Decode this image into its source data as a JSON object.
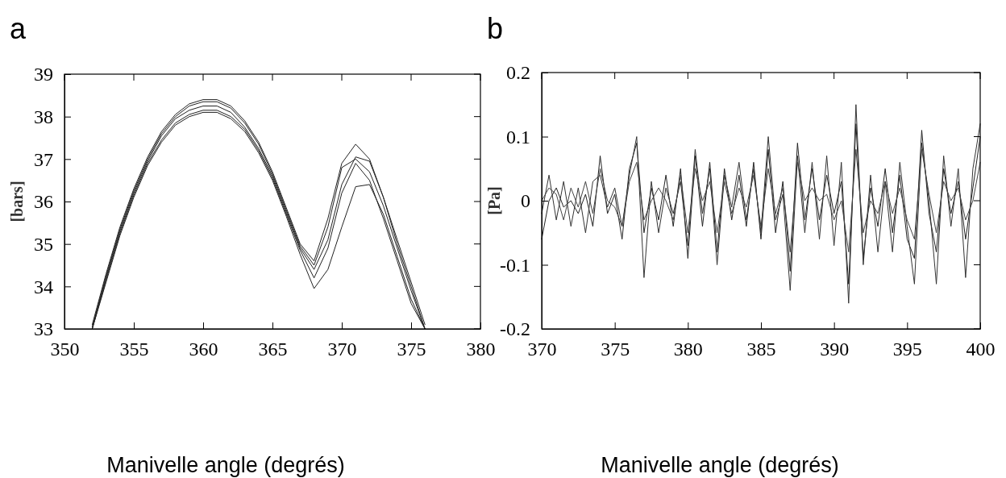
{
  "chart_data": [
    {
      "type": "line",
      "title": "a",
      "xlabel": "Manivelle angle (degrés)",
      "ylabel": "[bars]",
      "xlim": [
        350,
        380
      ],
      "xticks": [
        350,
        355,
        360,
        365,
        370,
        375,
        380
      ],
      "ylim": [
        33,
        39
      ],
      "yticks": [
        33,
        34,
        35,
        36,
        37,
        38,
        39
      ],
      "grid": false,
      "marker": "none",
      "line_style": "solid",
      "x": [
        352,
        353,
        354,
        355,
        356,
        357,
        358,
        359,
        360,
        361,
        362,
        363,
        364,
        365,
        366,
        367,
        368,
        369,
        370,
        371,
        372,
        373,
        374,
        375,
        376
      ],
      "series": [
        {
          "color": "#222222",
          "values": [
            33.1,
            34.3,
            35.4,
            36.3,
            37.05,
            37.65,
            38.05,
            38.3,
            38.4,
            38.4,
            38.25,
            37.9,
            37.4,
            36.7,
            35.85,
            35.0,
            34.6,
            35.6,
            36.9,
            37.35,
            37.0,
            36.1,
            35.1,
            34.1,
            33.1
          ]
        },
        {
          "color": "#222222",
          "values": [
            33.05,
            34.25,
            35.35,
            36.25,
            37.0,
            37.6,
            38.0,
            38.25,
            38.35,
            38.35,
            38.2,
            37.85,
            37.35,
            36.65,
            35.8,
            34.95,
            34.5,
            35.4,
            36.8,
            37.0,
            36.7,
            35.9,
            34.9,
            33.9,
            33.0
          ]
        },
        {
          "color": "#222222",
          "values": [
            33.0,
            34.2,
            35.3,
            36.2,
            36.95,
            37.55,
            37.95,
            38.15,
            38.25,
            38.25,
            38.1,
            37.75,
            37.25,
            36.6,
            35.75,
            34.9,
            34.4,
            35.1,
            36.4,
            37.05,
            36.95,
            36.1,
            35.0,
            34.0,
            33.0
          ]
        },
        {
          "color": "#222222",
          "values": [
            33.0,
            34.15,
            35.25,
            36.15,
            36.9,
            37.45,
            37.85,
            38.05,
            38.15,
            38.15,
            38.0,
            37.7,
            37.2,
            36.55,
            35.7,
            34.85,
            34.2,
            34.9,
            36.2,
            36.9,
            36.5,
            35.6,
            34.6,
            33.6,
            33.0
          ]
        },
        {
          "color": "#222222",
          "values": [
            33.0,
            34.1,
            35.2,
            36.1,
            36.85,
            37.4,
            37.8,
            38.0,
            38.1,
            38.1,
            37.95,
            37.65,
            37.15,
            36.5,
            35.65,
            34.75,
            33.95,
            34.4,
            35.4,
            36.35,
            36.4,
            35.7,
            34.7,
            33.7,
            33.0
          ]
        }
      ]
    },
    {
      "type": "line",
      "title": "b",
      "xlabel": "Manivelle angle (degrés)",
      "ylabel": "[Pa]",
      "xlim": [
        370,
        400
      ],
      "xticks": [
        370,
        375,
        380,
        385,
        390,
        395,
        400
      ],
      "ylim": [
        -0.2,
        0.2
      ],
      "yticks": [
        -0.2,
        -0.1,
        0,
        0.1,
        0.2
      ],
      "grid": false,
      "marker": "none",
      "line_style": "solid",
      "x": [
        370,
        370.5,
        371,
        371.5,
        372,
        372.5,
        373,
        373.5,
        374,
        374.5,
        375,
        375.5,
        376,
        376.5,
        377,
        377.5,
        378,
        378.5,
        379,
        379.5,
        380,
        380.5,
        381,
        381.5,
        382,
        382.5,
        383,
        383.5,
        384,
        384.5,
        385,
        385.5,
        386,
        386.5,
        387,
        387.5,
        388,
        388.5,
        389,
        389.5,
        390,
        390.5,
        391,
        391.5,
        392,
        392.5,
        393,
        393.5,
        394,
        394.5,
        395,
        395.5,
        396,
        396.5,
        397,
        397.5,
        398,
        398.5,
        399,
        399.5,
        400
      ],
      "series": [
        {
          "color": "#222222",
          "values": [
            -0.06,
            0.0,
            0.02,
            -0.01,
            0.0,
            -0.02,
            0.01,
            -0.04,
            0.07,
            -0.02,
            0.01,
            -0.06,
            0.05,
            0.09,
            -0.05,
            0.02,
            -0.03,
            0.04,
            -0.04,
            0.05,
            -0.09,
            0.07,
            -0.04,
            0.06,
            -0.08,
            0.05,
            -0.03,
            0.04,
            -0.04,
            0.06,
            -0.06,
            0.08,
            -0.05,
            0.03,
            -0.11,
            0.09,
            -0.03,
            0.05,
            -0.03,
            0.04,
            -0.02,
            0.03,
            -0.13,
            0.12,
            -0.09,
            0.02,
            -0.04,
            0.05,
            -0.05,
            0.04,
            -0.06,
            -0.09,
            0.11,
            -0.02,
            -0.08,
            0.05,
            -0.02,
            0.03,
            -0.06,
            0.02,
            0.1
          ]
        },
        {
          "color": "#333333",
          "values": [
            -0.02,
            0.04,
            -0.03,
            0.03,
            -0.04,
            0.02,
            -0.05,
            0.03,
            0.04,
            -0.01,
            0.02,
            -0.04,
            0.04,
            0.1,
            -0.12,
            0.03,
            -0.05,
            0.02,
            -0.02,
            0.03,
            -0.07,
            0.08,
            -0.02,
            0.05,
            -0.1,
            0.04,
            -0.01,
            0.06,
            -0.03,
            0.05,
            -0.05,
            0.1,
            -0.03,
            0.01,
            -0.14,
            0.07,
            -0.05,
            0.06,
            -0.06,
            0.07,
            -0.07,
            0.06,
            -0.16,
            0.15,
            -0.1,
            0.04,
            -0.08,
            0.03,
            -0.08,
            0.06,
            -0.04,
            -0.13,
            0.09,
            0.0,
            -0.13,
            0.07,
            -0.04,
            0.05,
            -0.12,
            0.05,
            0.12
          ]
        },
        {
          "color": "#444444",
          "values": [
            0.0,
            0.02,
            0.01,
            -0.03,
            0.02,
            -0.01,
            0.03,
            -0.02,
            0.05,
            0.0,
            -0.01,
            -0.04,
            0.03,
            0.06,
            -0.03,
            0.0,
            0.02,
            0.0,
            -0.03,
            0.04,
            -0.05,
            0.05,
            0.0,
            0.03,
            -0.05,
            0.03,
            -0.02,
            0.02,
            -0.01,
            0.04,
            -0.04,
            0.05,
            -0.02,
            0.02,
            -0.08,
            0.06,
            0.0,
            0.02,
            0.0,
            0.01,
            -0.03,
            0.0,
            -0.08,
            0.08,
            -0.05,
            0.0,
            -0.02,
            0.03,
            -0.02,
            0.02,
            -0.03,
            -0.06,
            0.08,
            0.01,
            -0.05,
            0.03,
            0.0,
            0.02,
            -0.03,
            0.0,
            0.06
          ]
        }
      ]
    }
  ]
}
